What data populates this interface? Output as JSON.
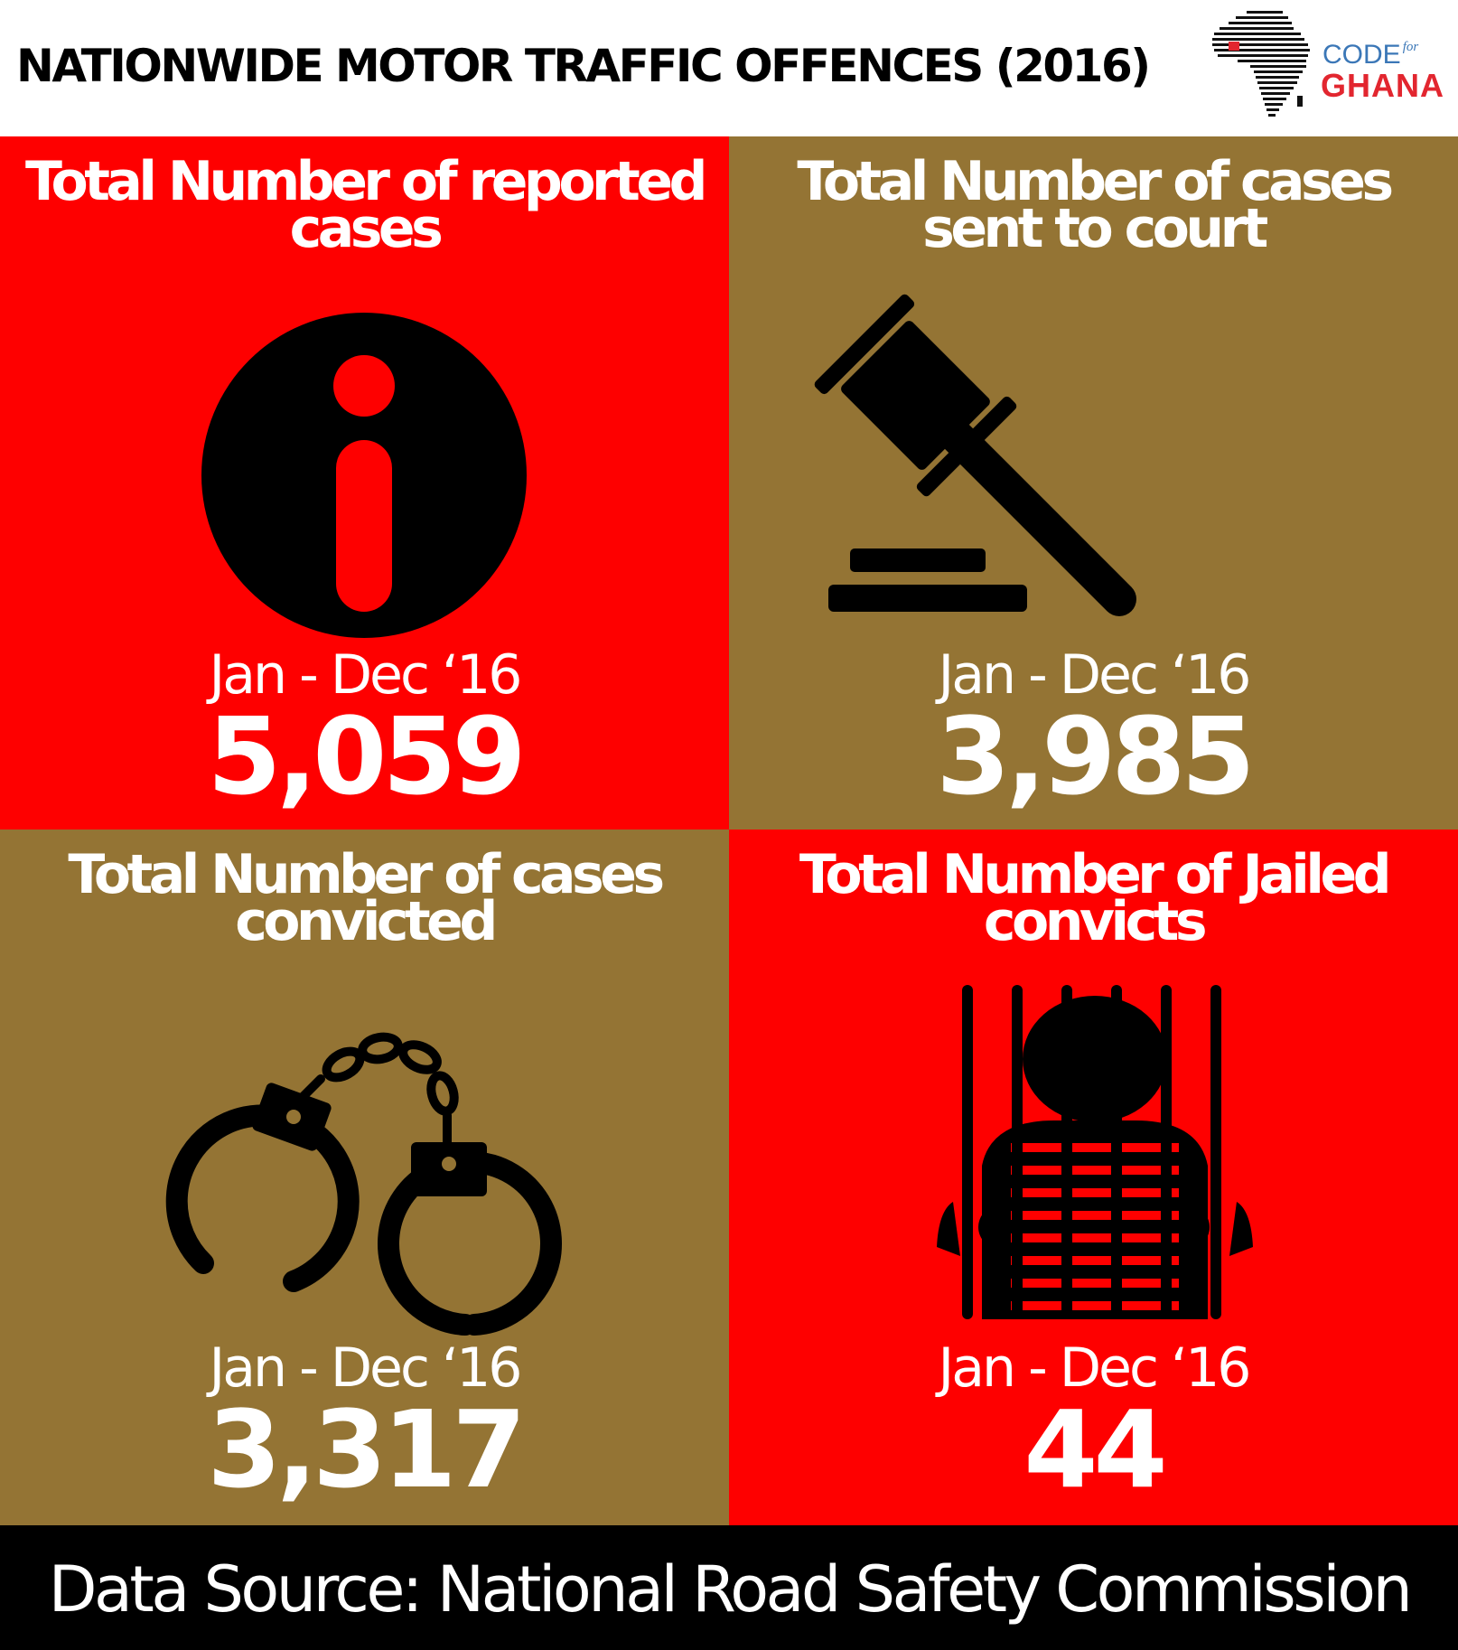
{
  "header": {
    "title": "NATIONWIDE MOTOR TRAFFIC OFFENCES (2016)",
    "logo": {
      "code_text": "CODE",
      "for_text": "for",
      "ghana_text": "GHANA",
      "code_color": "#3b77b7",
      "ghana_color": "#e2262f"
    }
  },
  "panels": [
    {
      "heading_line1": "Total Number of reported",
      "heading_line2": "cases",
      "icon": "info-icon",
      "period": "Jan - Dec ‘16",
      "value": "5,059",
      "background": "#fe0000"
    },
    {
      "heading_line1": "Total Number of cases",
      "heading_line2": "sent to court",
      "icon": "gavel-icon",
      "period": "Jan - Dec ‘16",
      "value": "3,985",
      "background": "#947434"
    },
    {
      "heading_line1": "Total Number of cases",
      "heading_line2": "convicted",
      "icon": "handcuffs-icon",
      "period": "Jan - Dec ‘16",
      "value": "3,317",
      "background": "#947434"
    },
    {
      "heading_line1": "Total Number of Jailed",
      "heading_line2": "convicts",
      "icon": "prisoner-behind-bars-icon",
      "period": "Jan - Dec ‘16",
      "value": "44",
      "background": "#fe0000"
    }
  ],
  "footer": {
    "source": "Data Source: National Road Safety Commission"
  }
}
